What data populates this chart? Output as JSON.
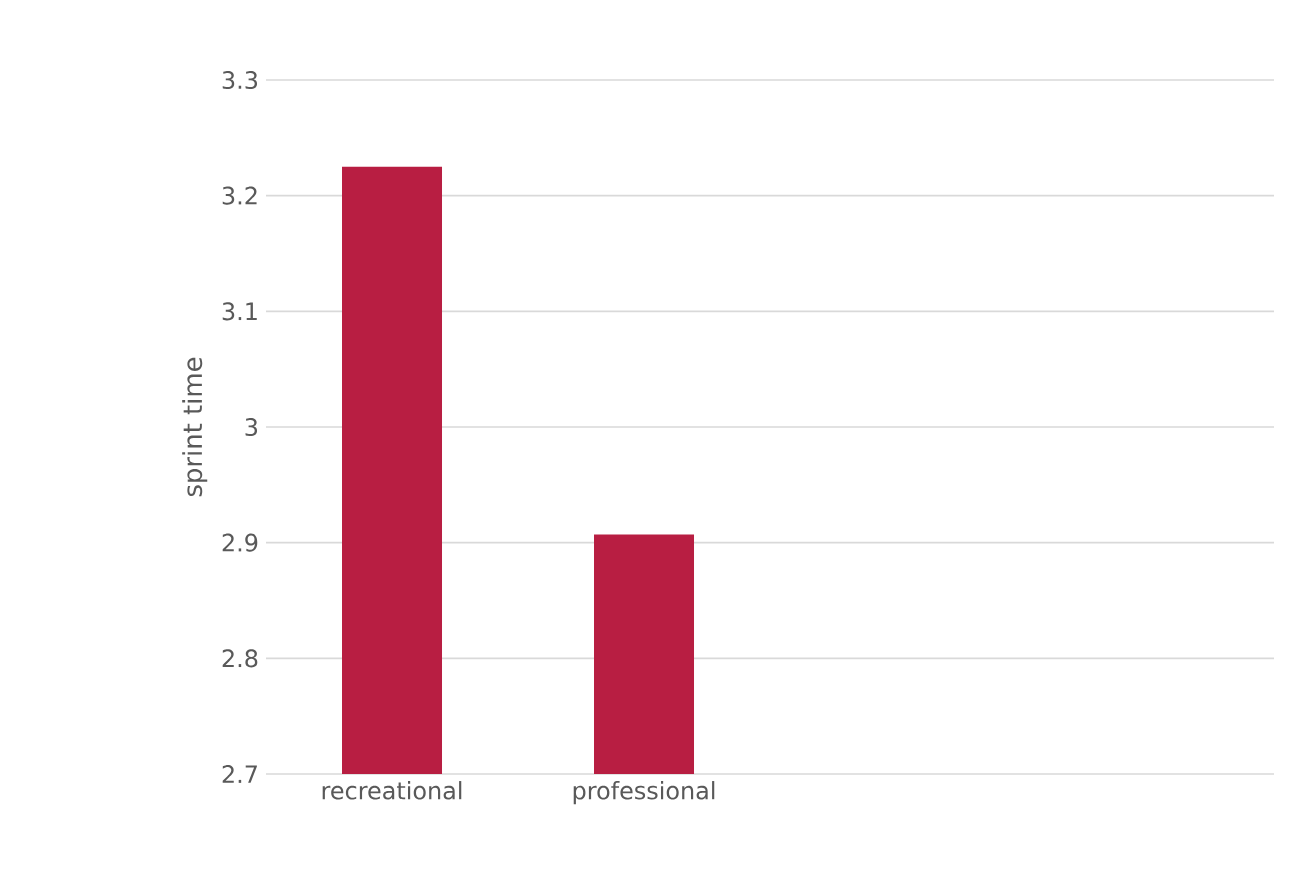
{
  "chart_data": {
    "type": "bar",
    "categories": [
      "recreational",
      "professional",
      null,
      null
    ],
    "values": [
      3.225,
      2.907,
      null,
      null
    ],
    "color": "#b81e42",
    "ylabel": "sprint time",
    "ylim": [
      2.7,
      3.3
    ],
    "yticks": [
      2.7,
      2.8,
      2.9,
      3,
      3.1,
      3.2,
      3.3
    ],
    "grid": "y"
  }
}
